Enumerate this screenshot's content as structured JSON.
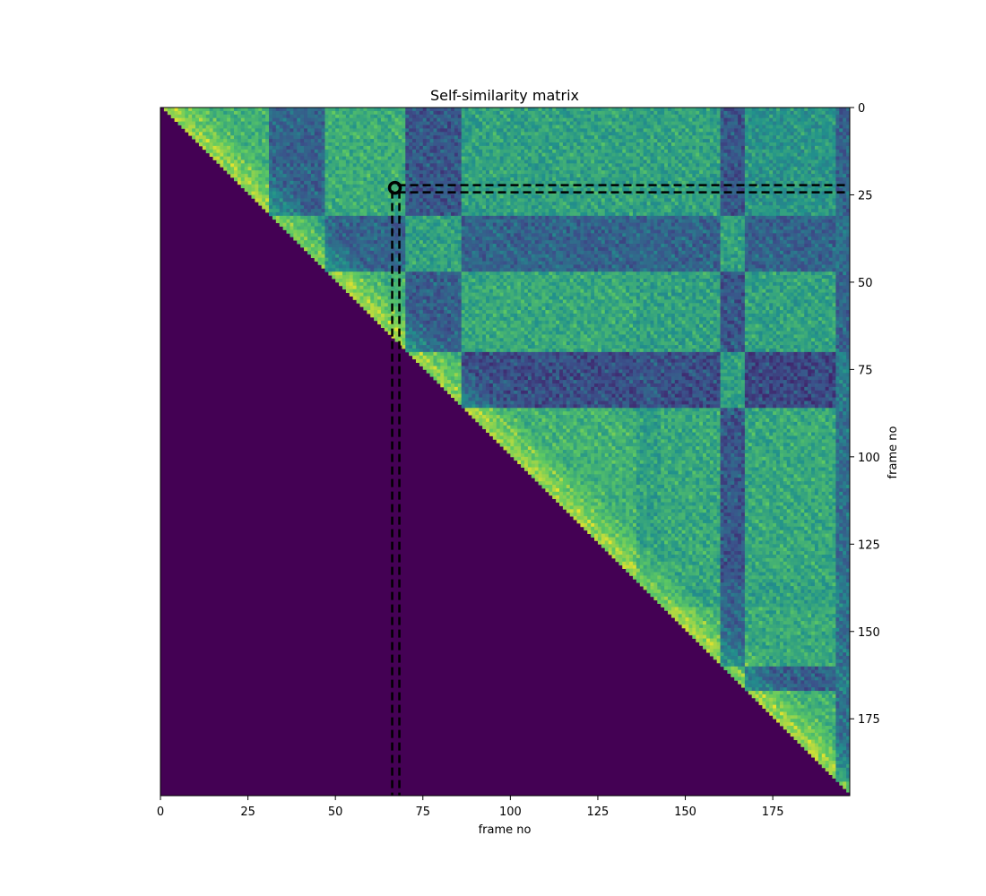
{
  "chart_data": {
    "type": "heatmap",
    "title": "Self-similarity matrix",
    "xlabel": "frame no",
    "ylabel": "frame no",
    "x_ticks": [
      0,
      25,
      50,
      75,
      100,
      125,
      150,
      175
    ],
    "y_ticks": [
      0,
      25,
      50,
      75,
      100,
      125,
      150,
      175
    ],
    "xlim": [
      0,
      197
    ],
    "ylim": [
      197,
      0
    ],
    "y_axis_side": "right",
    "colormap": "viridis",
    "masked_region": "lower triangle",
    "segment_boundaries": [
      0,
      31,
      47,
      70,
      86,
      136,
      143,
      160,
      167,
      193,
      197
    ],
    "segment_similarity": [
      [
        0.62,
        0.3,
        0.6,
        0.25,
        0.55,
        0.55,
        0.55,
        0.25,
        0.5,
        0.3
      ],
      [
        0.3,
        0.55,
        0.3,
        0.55,
        0.3,
        0.3,
        0.3,
        0.55,
        0.3,
        0.35
      ],
      [
        0.6,
        0.3,
        0.62,
        0.28,
        0.58,
        0.55,
        0.55,
        0.25,
        0.55,
        0.3
      ],
      [
        0.25,
        0.55,
        0.28,
        0.6,
        0.22,
        0.25,
        0.22,
        0.55,
        0.2,
        0.4
      ],
      [
        0.55,
        0.3,
        0.58,
        0.22,
        0.62,
        0.55,
        0.58,
        0.25,
        0.58,
        0.35
      ],
      [
        0.55,
        0.3,
        0.55,
        0.25,
        0.55,
        0.55,
        0.55,
        0.3,
        0.55,
        0.4
      ],
      [
        0.55,
        0.3,
        0.55,
        0.22,
        0.58,
        0.55,
        0.62,
        0.3,
        0.58,
        0.35
      ],
      [
        0.25,
        0.55,
        0.25,
        0.55,
        0.25,
        0.3,
        0.3,
        0.55,
        0.28,
        0.4
      ],
      [
        0.5,
        0.3,
        0.55,
        0.2,
        0.58,
        0.55,
        0.58,
        0.28,
        0.62,
        0.35
      ],
      [
        0.3,
        0.35,
        0.3,
        0.4,
        0.35,
        0.4,
        0.35,
        0.4,
        0.35,
        0.55
      ]
    ],
    "highlight": {
      "frame_a": 23,
      "frame_b": 67,
      "marker": "circle",
      "guides": "dashed",
      "color": "#000000"
    }
  }
}
